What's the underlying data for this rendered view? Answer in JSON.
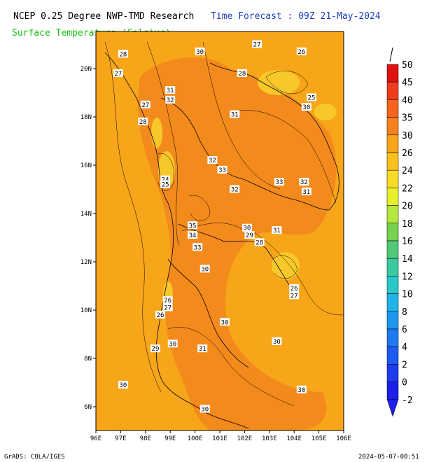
{
  "header": {
    "left_title": "NCEP 0.25 Degree NWP-TMD Research",
    "right_title": "Time Forecast : 09Z 21-May-2024",
    "subtitle": "Surface Temperature (Celsius)"
  },
  "footer": {
    "credit": "GrADS: COLA/IGES",
    "timestamp": "2024-05-07-08:51"
  },
  "map": {
    "lon_ticks": [
      "96E",
      "97E",
      "98E",
      "99E",
      "100E",
      "101E",
      "102E",
      "103E",
      "104E",
      "105E",
      "106E"
    ],
    "lat_ticks": [
      "20N",
      "18N",
      "16N",
      "14N",
      "12N",
      "10N",
      "8N",
      "6N"
    ],
    "contour_labels": [
      {
        "text": "28",
        "lon": 97.1,
        "lat": 20.6
      },
      {
        "text": "27",
        "lon": 96.9,
        "lat": 19.8
      },
      {
        "text": "30",
        "lon": 100.2,
        "lat": 20.7
      },
      {
        "text": "27",
        "lon": 102.5,
        "lat": 21.0
      },
      {
        "text": "26",
        "lon": 104.3,
        "lat": 20.7
      },
      {
        "text": "28",
        "lon": 101.9,
        "lat": 19.8
      },
      {
        "text": "31",
        "lon": 99.0,
        "lat": 19.1
      },
      {
        "text": "32",
        "lon": 99.0,
        "lat": 18.7
      },
      {
        "text": "27",
        "lon": 98.0,
        "lat": 18.5
      },
      {
        "text": "31",
        "lon": 101.6,
        "lat": 18.1
      },
      {
        "text": "25",
        "lon": 104.7,
        "lat": 18.8
      },
      {
        "text": "30",
        "lon": 104.5,
        "lat": 18.4
      },
      {
        "text": "28",
        "lon": 97.9,
        "lat": 17.8
      },
      {
        "text": "32",
        "lon": 100.7,
        "lat": 16.2
      },
      {
        "text": "33",
        "lon": 101.1,
        "lat": 15.8
      },
      {
        "text": "24",
        "lon": 98.8,
        "lat": 15.4
      },
      {
        "text": "25",
        "lon": 98.8,
        "lat": 15.2
      },
      {
        "text": "32",
        "lon": 101.6,
        "lat": 15.0
      },
      {
        "text": "33",
        "lon": 103.4,
        "lat": 15.3
      },
      {
        "text": "32",
        "lon": 104.4,
        "lat": 15.3
      },
      {
        "text": "31",
        "lon": 104.5,
        "lat": 14.9
      },
      {
        "text": "35",
        "lon": 99.9,
        "lat": 13.5
      },
      {
        "text": "34",
        "lon": 99.9,
        "lat": 13.1
      },
      {
        "text": "30",
        "lon": 102.1,
        "lat": 13.4
      },
      {
        "text": "31",
        "lon": 103.3,
        "lat": 13.3
      },
      {
        "text": "29",
        "lon": 102.2,
        "lat": 13.1
      },
      {
        "text": "28",
        "lon": 102.6,
        "lat": 12.8
      },
      {
        "text": "33",
        "lon": 100.1,
        "lat": 12.6
      },
      {
        "text": "30",
        "lon": 100.4,
        "lat": 11.7
      },
      {
        "text": "26",
        "lon": 104.0,
        "lat": 10.9
      },
      {
        "text": "27",
        "lon": 104.0,
        "lat": 10.6
      },
      {
        "text": "26",
        "lon": 98.9,
        "lat": 10.4
      },
      {
        "text": "27",
        "lon": 98.9,
        "lat": 10.1
      },
      {
        "text": "26",
        "lon": 98.6,
        "lat": 9.8
      },
      {
        "text": "30",
        "lon": 101.2,
        "lat": 9.5
      },
      {
        "text": "30",
        "lon": 103.3,
        "lat": 8.7
      },
      {
        "text": "30",
        "lon": 99.1,
        "lat": 8.6
      },
      {
        "text": "29",
        "lon": 98.4,
        "lat": 8.4
      },
      {
        "text": "31",
        "lon": 100.3,
        "lat": 8.4
      },
      {
        "text": "30",
        "lon": 97.1,
        "lat": 6.9
      },
      {
        "text": "30",
        "lon": 104.3,
        "lat": 6.7
      },
      {
        "text": "30",
        "lon": 100.4,
        "lat": 5.9
      }
    ]
  },
  "colorbar": {
    "levels": [
      "50",
      "45",
      "40",
      "35",
      "30",
      "26",
      "24",
      "22",
      "20",
      "18",
      "16",
      "14",
      "12",
      "10",
      "8",
      "6",
      "4",
      "2",
      "0",
      "-2"
    ],
    "colors": [
      "#e01010",
      "#f03c1e",
      "#f4641e",
      "#f5821e",
      "#f7a519",
      "#f9c01e",
      "#f8dc28",
      "#e8f02a",
      "#b4e63c",
      "#78d250",
      "#50c878",
      "#3cc8a0",
      "#28c8c8",
      "#1eb4e6",
      "#1e96f0",
      "#1e78f0",
      "#1e5af0",
      "#1e3cf0",
      "#1e1eeb"
    ]
  },
  "colors": {
    "field_base": "#f7a519",
    "field_warm": "#f38a1c",
    "field_cool": "#f8c82a"
  }
}
